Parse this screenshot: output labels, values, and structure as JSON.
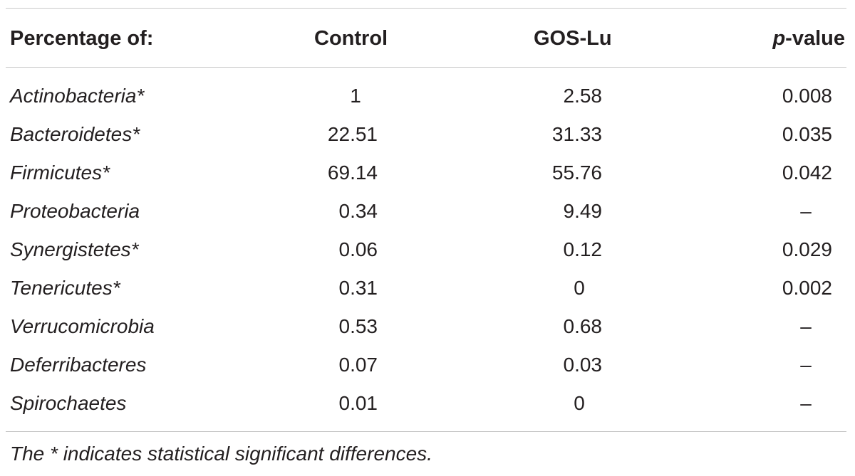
{
  "table": {
    "headers": {
      "label": "Percentage of:",
      "control": "Control",
      "gos": "GOS-Lu",
      "p_italic": "p",
      "p_rest": "-value"
    },
    "rows": [
      {
        "name": "Actinobacteria*",
        "control": "1",
        "gos": "2.58",
        "p": "0.008"
      },
      {
        "name": "Bacteroidetes*",
        "control": "22.51",
        "gos": "31.33",
        "p": "0.035"
      },
      {
        "name": "Firmicutes*",
        "control": "69.14",
        "gos": "55.76",
        "p": "0.042"
      },
      {
        "name": "Proteobacteria",
        "control": "0.34",
        "gos": "9.49",
        "p": "–"
      },
      {
        "name": "Synergistetes*",
        "control": "0.06",
        "gos": "0.12",
        "p": "0.029"
      },
      {
        "name": "Tenericutes*",
        "control": "0.31",
        "gos": "0",
        "p": "0.002"
      },
      {
        "name": "Verrucomicrobia",
        "control": "0.53",
        "gos": "0.68",
        "p": "–"
      },
      {
        "name": "Deferribacteres",
        "control": "0.07",
        "gos": "0.03",
        "p": "–"
      },
      {
        "name": "Spirochaetes",
        "control": "0.01",
        "gos": "0",
        "p": "–"
      }
    ],
    "footnote": "The * indicates statistical significant differences."
  }
}
